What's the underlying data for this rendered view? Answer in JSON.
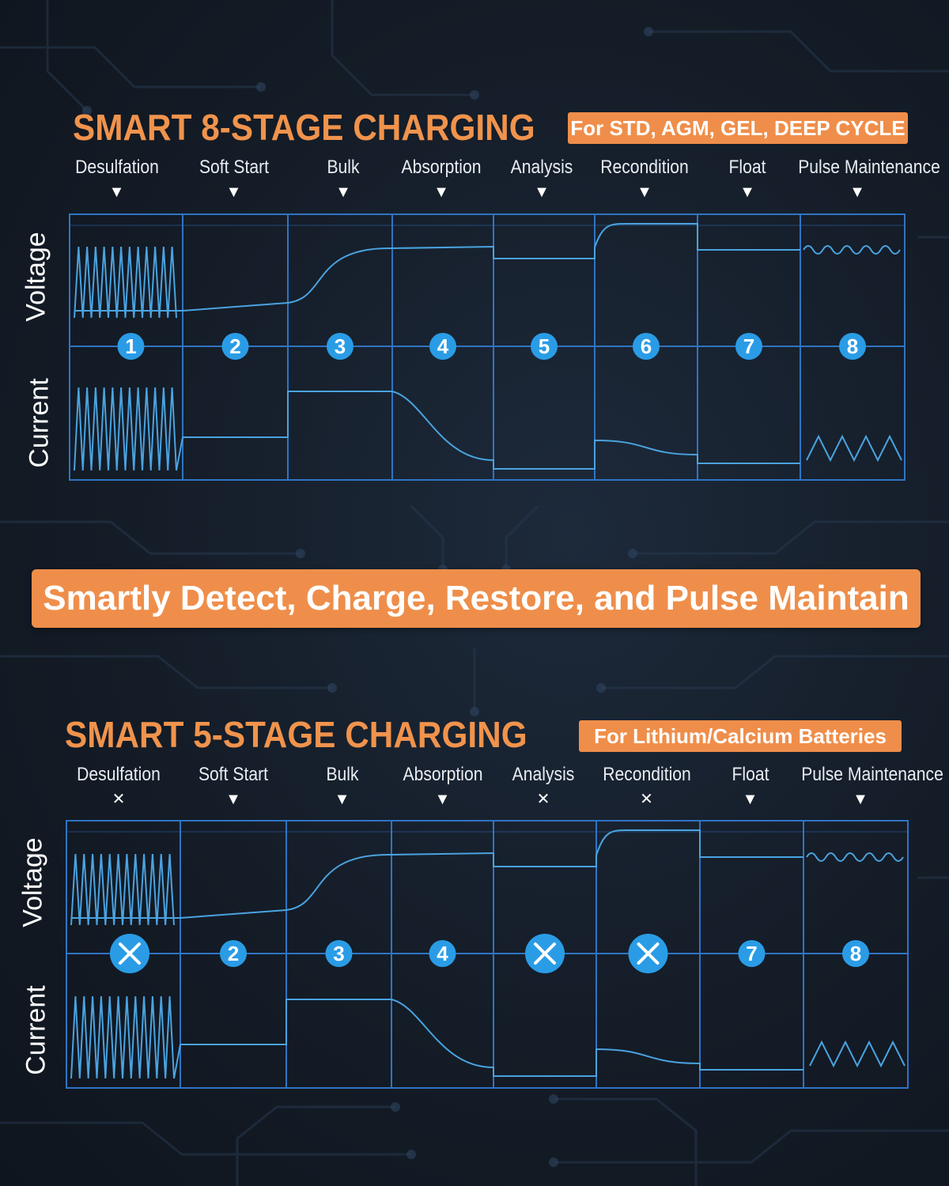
{
  "colors": {
    "accent": "#ef8e4a",
    "grid": "#2f74c4",
    "waveform": "#4aa3e0",
    "marker": "#2a9ce6",
    "background": "#141c27"
  },
  "top": {
    "title": "SMART 8-STAGE CHARGING",
    "badge": "For STD, AGM, GEL, DEEP CYCLE",
    "y_labels": [
      "Voltage",
      "Current"
    ],
    "stages": [
      {
        "label": "Desulfation",
        "active": true,
        "marker": "1"
      },
      {
        "label": "Soft Start",
        "active": true,
        "marker": "2"
      },
      {
        "label": "Bulk",
        "active": true,
        "marker": "3"
      },
      {
        "label": "Absorption",
        "active": true,
        "marker": "4"
      },
      {
        "label": "Analysis",
        "active": true,
        "marker": "5"
      },
      {
        "label": "Recondition",
        "active": true,
        "marker": "6"
      },
      {
        "label": "Float",
        "active": true,
        "marker": "7"
      },
      {
        "label": "Pulse Maintenance",
        "active": true,
        "marker": "8"
      }
    ]
  },
  "banner": "Smartly Detect, Charge, Restore, and Pulse Maintain",
  "bottom": {
    "title": "SMART 5-STAGE CHARGING",
    "badge": "For Lithium/Calcium Batteries",
    "y_labels": [
      "Voltage",
      "Current"
    ],
    "stages": [
      {
        "label": "Desulfation",
        "active": false,
        "marker": "✕"
      },
      {
        "label": "Soft Start",
        "active": true,
        "marker": "2"
      },
      {
        "label": "Bulk",
        "active": true,
        "marker": "3"
      },
      {
        "label": "Absorption",
        "active": true,
        "marker": "4"
      },
      {
        "label": "Analysis",
        "active": false,
        "marker": "✕"
      },
      {
        "label": "Recondition",
        "active": false,
        "marker": "✕"
      },
      {
        "label": "Float",
        "active": true,
        "marker": "7"
      },
      {
        "label": "Pulse Maintenance",
        "active": true,
        "marker": "8"
      }
    ]
  },
  "icons": {
    "active": "down-triangle-icon",
    "inactive": "cross-icon"
  }
}
